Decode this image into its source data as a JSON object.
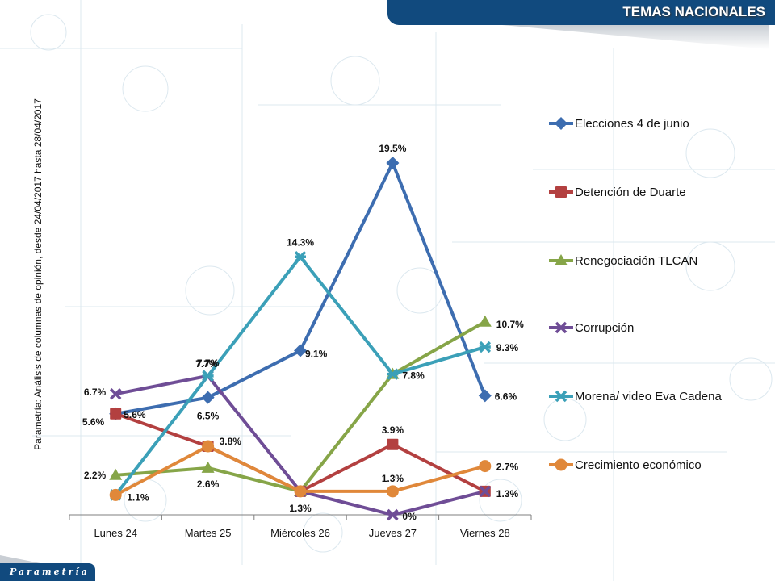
{
  "header": {
    "title": "TEMAS NACIONALES"
  },
  "footer": {
    "logo_text": "Parametría"
  },
  "side_label": "Parametría: Análisis de columnas de opinión, desde 24/04/2017 hasta 28/04/2017",
  "chart_data": {
    "type": "line",
    "title": "",
    "xlabel": "",
    "ylabel": "",
    "categories": [
      "Lunes 24",
      "Martes 25",
      "Miércoles 26",
      "Jueves 27",
      "Viernes 28"
    ],
    "ylim": [
      0,
      20
    ],
    "grid": false,
    "legend_position": "right",
    "value_suffix": "%",
    "series": [
      {
        "name": "Elecciones 4 de junio",
        "color": "#3d6db0",
        "marker": "diamond",
        "values": [
          5.6,
          6.5,
          9.1,
          19.5,
          6.6
        ],
        "labels": [
          "5.6%",
          "6.5%",
          "9.1%",
          "19.5%",
          "6.6%"
        ]
      },
      {
        "name": "Detención de Duarte",
        "color": "#b34040",
        "marker": "square",
        "values": [
          5.6,
          3.8,
          1.3,
          3.9,
          1.3
        ],
        "labels": [
          "5.6%",
          "",
          "",
          "3.9%",
          ""
        ]
      },
      {
        "name": "Renegociación TLCAN",
        "color": "#86a548",
        "marker": "triangle",
        "values": [
          2.2,
          2.6,
          1.3,
          7.8,
          10.7
        ],
        "labels": [
          "2.2%",
          "2.6%",
          "",
          "",
          "10.7%"
        ]
      },
      {
        "name": "Corrupción",
        "color": "#6f4d96",
        "marker": "x",
        "values": [
          6.7,
          7.7,
          1.3,
          0,
          1.3
        ],
        "labels": [
          "6.7%",
          "7.7%",
          "",
          "0%",
          "1.3%"
        ]
      },
      {
        "name": "Morena/ video Eva Cadena",
        "color": "#3ba0b8",
        "marker": "star",
        "values": [
          1.1,
          7.7,
          14.3,
          7.8,
          9.3
        ],
        "labels": [
          "",
          "7.7%",
          "14.3%",
          "7.8%",
          "9.3%"
        ]
      },
      {
        "name": "Crecimiento económico",
        "color": "#e0883a",
        "marker": "circle",
        "values": [
          1.1,
          3.8,
          1.3,
          1.3,
          2.7
        ],
        "labels": [
          "1.1%",
          "3.8%",
          "1.3%",
          "1.3%",
          "2.7%"
        ]
      }
    ]
  }
}
